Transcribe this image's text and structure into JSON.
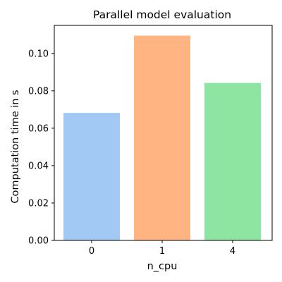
{
  "chart_data": {
    "type": "bar",
    "title": "Parallel model evaluation",
    "xlabel": "n_cpu",
    "ylabel": "Computation time in s",
    "categories": [
      "0",
      "1",
      "4"
    ],
    "values": [
      0.0682,
      0.1095,
      0.0842
    ],
    "colors": [
      "#a1c9f4",
      "#ffb482",
      "#8de5a1"
    ],
    "ylim": [
      0,
      0.115
    ],
    "yticks": [
      0.0,
      0.02,
      0.04,
      0.06,
      0.08,
      0.1
    ],
    "ytick_labels": [
      "0.00",
      "0.02",
      "0.04",
      "0.06",
      "0.08",
      "0.10"
    ],
    "grid": false,
    "legend": "none"
  }
}
